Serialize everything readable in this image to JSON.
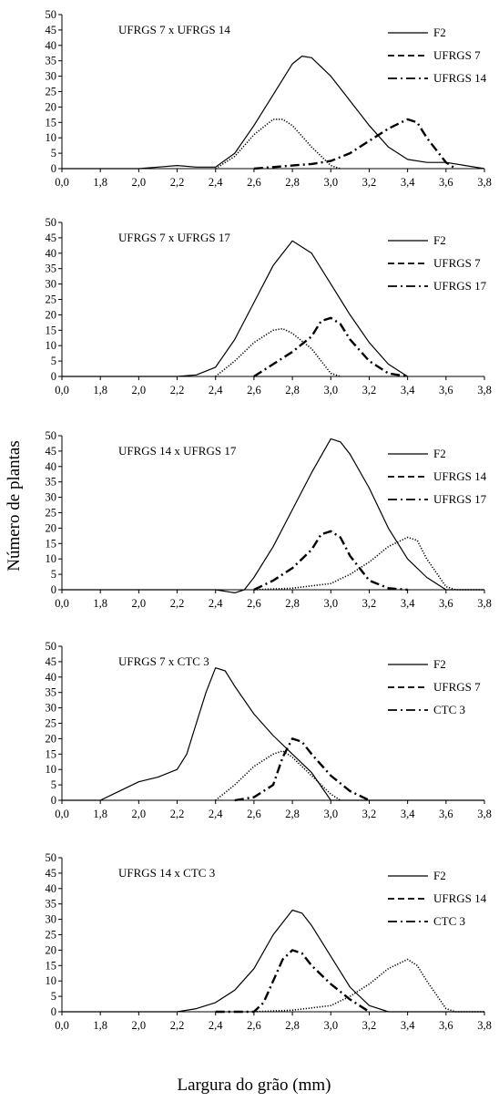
{
  "figure": {
    "ylabel": "Número de plantas",
    "xlabel": "Largura do grão (mm)"
  },
  "chart_data": [
    {
      "type": "line",
      "title": "UFRGS 7 x UFRGS 14",
      "x_ticks": [
        "0,0",
        "1,8",
        "2,0",
        "2,2",
        "2,4",
        "2,6",
        "2,8",
        "3,0",
        "3,2",
        "3,4",
        "3,6",
        "3,8"
      ],
      "x_tick_values": [
        1.6,
        1.8,
        2.0,
        2.2,
        2.4,
        2.6,
        2.8,
        3.0,
        3.2,
        3.4,
        3.6,
        3.8
      ],
      "xlim": [
        1.6,
        3.8
      ],
      "ylim": [
        0,
        50
      ],
      "y_ticks": [
        0,
        5,
        10,
        15,
        20,
        25,
        30,
        35,
        40,
        45,
        50
      ],
      "legend_position": "top-right",
      "series": [
        {
          "name": "F2",
          "style": "solid",
          "points": [
            [
              1.6,
              0
            ],
            [
              2.0,
              0
            ],
            [
              2.1,
              0.5
            ],
            [
              2.2,
              1
            ],
            [
              2.3,
              0.5
            ],
            [
              2.4,
              0.5
            ],
            [
              2.5,
              5
            ],
            [
              2.6,
              14
            ],
            [
              2.7,
              24
            ],
            [
              2.8,
              34
            ],
            [
              2.85,
              36.5
            ],
            [
              2.9,
              36
            ],
            [
              3.0,
              30
            ],
            [
              3.1,
              22
            ],
            [
              3.2,
              14
            ],
            [
              3.3,
              7
            ],
            [
              3.4,
              3
            ],
            [
              3.5,
              2
            ],
            [
              3.6,
              2
            ],
            [
              3.7,
              1
            ],
            [
              3.8,
              0
            ]
          ]
        },
        {
          "name": "UFRGS 7",
          "style": "dotted",
          "points": [
            [
              2.4,
              0
            ],
            [
              2.5,
              4
            ],
            [
              2.6,
              11
            ],
            [
              2.7,
              16
            ],
            [
              2.75,
              16
            ],
            [
              2.8,
              14
            ],
            [
              2.9,
              7
            ],
            [
              3.0,
              1
            ],
            [
              3.05,
              0
            ]
          ]
        },
        {
          "name": "UFRGS 14",
          "style": "dash-dot",
          "points": [
            [
              2.6,
              0
            ],
            [
              2.8,
              1
            ],
            [
              2.9,
              1.5
            ],
            [
              3.0,
              2.5
            ],
            [
              3.1,
              5
            ],
            [
              3.2,
              9
            ],
            [
              3.3,
              13
            ],
            [
              3.4,
              16
            ],
            [
              3.45,
              15
            ],
            [
              3.5,
              10
            ],
            [
              3.6,
              2
            ],
            [
              3.65,
              0
            ]
          ]
        }
      ]
    },
    {
      "type": "line",
      "title": "UFRGS 7 x UFRGS 17",
      "x_ticks": [
        "0,0",
        "1,8",
        "2,0",
        "2,2",
        "2,4",
        "2,6",
        "2,8",
        "3,0",
        "3,2",
        "3,4",
        "3,6",
        "3,8"
      ],
      "x_tick_values": [
        1.6,
        1.8,
        2.0,
        2.2,
        2.4,
        2.6,
        2.8,
        3.0,
        3.2,
        3.4,
        3.6,
        3.8
      ],
      "xlim": [
        1.6,
        3.8
      ],
      "ylim": [
        0,
        50
      ],
      "y_ticks": [
        0,
        5,
        10,
        15,
        20,
        25,
        30,
        35,
        40,
        45,
        50
      ],
      "legend_position": "top-right",
      "series": [
        {
          "name": "F2",
          "style": "solid",
          "points": [
            [
              1.6,
              0
            ],
            [
              2.2,
              0
            ],
            [
              2.3,
              0.5
            ],
            [
              2.4,
              3
            ],
            [
              2.5,
              12
            ],
            [
              2.6,
              24
            ],
            [
              2.7,
              36
            ],
            [
              2.8,
              44
            ],
            [
              2.9,
              40
            ],
            [
              3.0,
              30
            ],
            [
              3.1,
              20
            ],
            [
              3.2,
              11
            ],
            [
              3.3,
              4
            ],
            [
              3.4,
              0
            ]
          ]
        },
        {
          "name": "UFRGS 7",
          "style": "dotted",
          "points": [
            [
              2.4,
              0
            ],
            [
              2.5,
              5
            ],
            [
              2.6,
              11
            ],
            [
              2.7,
              15
            ],
            [
              2.75,
              15.5
            ],
            [
              2.8,
              14
            ],
            [
              2.9,
              9
            ],
            [
              3.0,
              1
            ],
            [
              3.05,
              0
            ]
          ]
        },
        {
          "name": "UFRGS 17",
          "style": "dash-dot",
          "points": [
            [
              2.6,
              0
            ],
            [
              2.7,
              4
            ],
            [
              2.8,
              8
            ],
            [
              2.9,
              13
            ],
            [
              2.95,
              18
            ],
            [
              3.0,
              19
            ],
            [
              3.05,
              17
            ],
            [
              3.1,
              12
            ],
            [
              3.2,
              5
            ],
            [
              3.3,
              1
            ],
            [
              3.4,
              0
            ]
          ]
        }
      ]
    },
    {
      "type": "line",
      "title": "UFRGS 14 x UFRGS 17",
      "x_ticks": [
        "0,0",
        "1,8",
        "2,0",
        "2,2",
        "2,4",
        "2,6",
        "2,8",
        "3,0",
        "3,2",
        "3,4",
        "3,6",
        "3,8"
      ],
      "x_tick_values": [
        1.6,
        1.8,
        2.0,
        2.2,
        2.4,
        2.6,
        2.8,
        3.0,
        3.2,
        3.4,
        3.6,
        3.8
      ],
      "xlim": [
        1.6,
        3.8
      ],
      "ylim": [
        0,
        50
      ],
      "y_ticks": [
        0,
        5,
        10,
        15,
        20,
        25,
        30,
        35,
        40,
        45,
        50
      ],
      "legend_position": "top-right",
      "series": [
        {
          "name": "F2",
          "style": "solid",
          "points": [
            [
              1.6,
              0
            ],
            [
              2.4,
              0
            ],
            [
              2.5,
              -1
            ],
            [
              2.55,
              0
            ],
            [
              2.6,
              4
            ],
            [
              2.7,
              14
            ],
            [
              2.8,
              26
            ],
            [
              2.9,
              38
            ],
            [
              3.0,
              49
            ],
            [
              3.05,
              48
            ],
            [
              3.1,
              44
            ],
            [
              3.2,
              33
            ],
            [
              3.3,
              20
            ],
            [
              3.4,
              10
            ],
            [
              3.5,
              4
            ],
            [
              3.6,
              0
            ],
            [
              3.8,
              0
            ]
          ]
        },
        {
          "name": "UFRGS 14",
          "style": "dotted",
          "points": [
            [
              2.6,
              0
            ],
            [
              2.8,
              0.5
            ],
            [
              3.0,
              2
            ],
            [
              3.1,
              5
            ],
            [
              3.2,
              9
            ],
            [
              3.3,
              14
            ],
            [
              3.4,
              17
            ],
            [
              3.45,
              16
            ],
            [
              3.5,
              10
            ],
            [
              3.6,
              1
            ],
            [
              3.65,
              0
            ],
            [
              3.8,
              0
            ]
          ]
        },
        {
          "name": "UFRGS 17",
          "style": "dash-dot",
          "points": [
            [
              2.6,
              0
            ],
            [
              2.7,
              3
            ],
            [
              2.8,
              7
            ],
            [
              2.9,
              13
            ],
            [
              2.95,
              18
            ],
            [
              3.0,
              19
            ],
            [
              3.05,
              17
            ],
            [
              3.1,
              11
            ],
            [
              3.2,
              3
            ],
            [
              3.3,
              0.5
            ],
            [
              3.4,
              0
            ]
          ]
        }
      ]
    },
    {
      "type": "line",
      "title": "UFRGS 7 x CTC 3",
      "x_ticks": [
        "0,0",
        "1,8",
        "2,0",
        "2,2",
        "2,4",
        "2,6",
        "2,8",
        "3,0",
        "3,2",
        "3,4",
        "3,6",
        "3,8"
      ],
      "x_tick_values": [
        1.6,
        1.8,
        2.0,
        2.2,
        2.4,
        2.6,
        2.8,
        3.0,
        3.2,
        3.4,
        3.6,
        3.8
      ],
      "xlim": [
        1.6,
        3.8
      ],
      "ylim": [
        0,
        50
      ],
      "y_ticks": [
        0,
        5,
        10,
        15,
        20,
        25,
        30,
        35,
        40,
        45,
        50
      ],
      "legend_position": "top-right",
      "series": [
        {
          "name": "F2",
          "style": "solid",
          "points": [
            [
              1.6,
              0
            ],
            [
              1.8,
              0
            ],
            [
              2.0,
              6
            ],
            [
              2.1,
              7.5
            ],
            [
              2.2,
              10
            ],
            [
              2.25,
              15
            ],
            [
              2.3,
              25
            ],
            [
              2.35,
              35
            ],
            [
              2.4,
              43
            ],
            [
              2.45,
              42
            ],
            [
              2.5,
              37
            ],
            [
              2.6,
              28
            ],
            [
              2.7,
              21
            ],
            [
              2.8,
              15
            ],
            [
              2.9,
              9
            ],
            [
              3.0,
              0
            ],
            [
              3.1,
              0
            ],
            [
              3.8,
              0
            ]
          ]
        },
        {
          "name": "UFRGS 7",
          "style": "dotted",
          "points": [
            [
              2.4,
              0
            ],
            [
              2.5,
              5
            ],
            [
              2.6,
              11
            ],
            [
              2.7,
              15
            ],
            [
              2.75,
              16
            ],
            [
              2.8,
              14
            ],
            [
              2.9,
              8
            ],
            [
              3.0,
              2
            ],
            [
              3.05,
              0
            ]
          ]
        },
        {
          "name": "CTC 3",
          "style": "dash-dot",
          "points": [
            [
              2.5,
              0
            ],
            [
              2.6,
              1
            ],
            [
              2.7,
              5
            ],
            [
              2.75,
              14
            ],
            [
              2.8,
              20
            ],
            [
              2.85,
              19
            ],
            [
              2.9,
              15
            ],
            [
              3.0,
              8
            ],
            [
              3.1,
              3
            ],
            [
              3.2,
              0
            ]
          ]
        }
      ]
    },
    {
      "type": "line",
      "title": "UFRGS 14 x CTC 3",
      "x_ticks": [
        "0,0",
        "1,8",
        "2,0",
        "2,2",
        "2,4",
        "2,6",
        "2,8",
        "3,0",
        "3,2",
        "3,4",
        "3,6",
        "3,8"
      ],
      "x_tick_values": [
        1.6,
        1.8,
        2.0,
        2.2,
        2.4,
        2.6,
        2.8,
        3.0,
        3.2,
        3.4,
        3.6,
        3.8
      ],
      "xlim": [
        1.6,
        3.8
      ],
      "ylim": [
        0,
        50
      ],
      "y_ticks": [
        0,
        5,
        10,
        15,
        20,
        25,
        30,
        35,
        40,
        45,
        50
      ],
      "legend_position": "top-right",
      "series": [
        {
          "name": "F2",
          "style": "solid",
          "points": [
            [
              1.6,
              0
            ],
            [
              2.2,
              0
            ],
            [
              2.3,
              1
            ],
            [
              2.4,
              3
            ],
            [
              2.5,
              7
            ],
            [
              2.6,
              14
            ],
            [
              2.7,
              25
            ],
            [
              2.8,
              33
            ],
            [
              2.85,
              32
            ],
            [
              2.9,
              28
            ],
            [
              3.0,
              18
            ],
            [
              3.1,
              8
            ],
            [
              3.2,
              2
            ],
            [
              3.3,
              0
            ],
            [
              3.8,
              0
            ]
          ]
        },
        {
          "name": "UFRGS 14",
          "style": "dotted",
          "points": [
            [
              2.6,
              0
            ],
            [
              2.8,
              0.5
            ],
            [
              3.0,
              2
            ],
            [
              3.1,
              5
            ],
            [
              3.2,
              9
            ],
            [
              3.3,
              14
            ],
            [
              3.4,
              17
            ],
            [
              3.45,
              15
            ],
            [
              3.5,
              10
            ],
            [
              3.6,
              1
            ],
            [
              3.65,
              0
            ],
            [
              3.8,
              0
            ]
          ]
        },
        {
          "name": "CTC 3",
          "style": "dash-dot",
          "points": [
            [
              2.4,
              0
            ],
            [
              2.6,
              0
            ],
            [
              2.65,
              3
            ],
            [
              2.7,
              10
            ],
            [
              2.75,
              17
            ],
            [
              2.8,
              20
            ],
            [
              2.85,
              19
            ],
            [
              2.9,
              15
            ],
            [
              3.0,
              9
            ],
            [
              3.1,
              4
            ],
            [
              3.2,
              0
            ]
          ]
        }
      ]
    }
  ]
}
